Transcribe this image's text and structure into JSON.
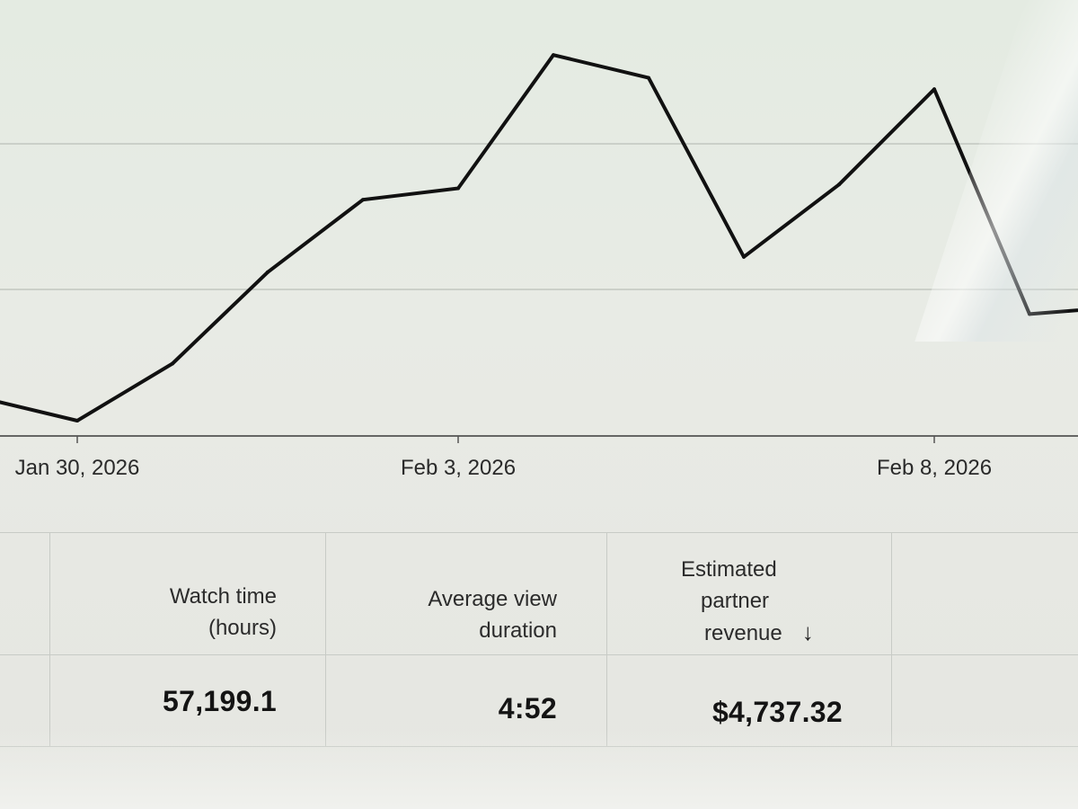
{
  "chart_data": {
    "type": "line",
    "x_tick_labels": [
      "Jan 30, 2026",
      "Feb 3, 2026",
      "Feb 8, 2026"
    ],
    "points": [
      {
        "x": "Jan 29, 2026",
        "y": 0.1
      },
      {
        "x": "Jan 30, 2026",
        "y": 0.04
      },
      {
        "x": "Jan 31, 2026",
        "y": 0.19
      },
      {
        "x": "Feb 1, 2026",
        "y": 0.43
      },
      {
        "x": "Feb 2, 2026",
        "y": 0.62
      },
      {
        "x": "Feb 3, 2026",
        "y": 0.65
      },
      {
        "x": "Feb 4, 2026",
        "y": 1.0
      },
      {
        "x": "Feb 5, 2026",
        "y": 0.94
      },
      {
        "x": "Feb 6, 2026",
        "y": 0.47
      },
      {
        "x": "Feb 7, 2026",
        "y": 0.66
      },
      {
        "x": "Feb 8, 2026",
        "y": 0.91
      },
      {
        "x": "Feb 9, 2026",
        "y": 0.32
      },
      {
        "x": "Feb 10, 2026",
        "y": 0.34
      }
    ],
    "ylim": [
      0,
      1.05
    ],
    "grid": true,
    "line_color": "#111111"
  },
  "metrics": {
    "watch_time": {
      "label_lines": [
        "Watch time",
        "(hours)"
      ],
      "value": "57,199.1"
    },
    "avg_view_duration": {
      "label_lines": [
        "Average view",
        "duration"
      ],
      "value": "4:52"
    },
    "est_revenue": {
      "label_lines": [
        "Estimated",
        "partner",
        "revenue"
      ],
      "sort_icon": "arrow-down-icon",
      "sort_glyph": "↓",
      "value": "$4,737.32"
    }
  }
}
